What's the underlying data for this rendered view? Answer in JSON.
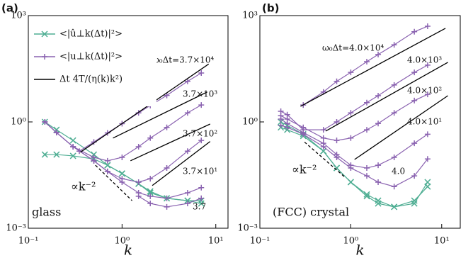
{
  "chart_data": [
    {
      "type": "line",
      "panel_label": "(a)",
      "corner_label": "glass",
      "xlabel": "k",
      "log_scale": true,
      "legend": "upper left",
      "xlim": [
        0.1,
        13.5
      ],
      "ylim": [
        0.001,
        1000
      ],
      "xticks": [
        {
          "value": 0.1,
          "label": "10⁻¹"
        },
        {
          "value": 1,
          "label": "10⁰"
        },
        {
          "value": 10,
          "label": "10¹"
        }
      ],
      "yticks": [
        {
          "value": 0.001,
          "label": "10⁻³"
        },
        {
          "value": 1,
          "label": "10⁰"
        },
        {
          "value": 1000,
          "label": "10³"
        }
      ],
      "series": [
        {
          "name": "<|û⊥k(Δt)|²>",
          "color": "#4fae93",
          "marker": "x",
          "curves": [
            {
              "x": [
                0.15,
                0.2,
                0.3,
                0.5,
                0.7,
                1,
                1.5,
                2,
                3,
                5,
                7
              ],
              "values": [
                1.0,
                0.6,
                0.3,
                0.12,
                0.06,
                0.035,
                0.018,
                0.011,
                0.007,
                0.006,
                0.006
              ]
            },
            {
              "x": [
                0.15,
                0.2,
                0.3,
                0.5,
                0.7,
                1,
                1.5,
                2,
                3,
                5,
                7
              ],
              "values": [
                0.12,
                0.12,
                0.11,
                0.09,
                0.06,
                0.035,
                0.018,
                0.01,
                0.007,
                0.006,
                0.005
              ]
            }
          ]
        },
        {
          "name": "<|u⊥k(Δt)|²>",
          "color": "#8a62b0",
          "marker": "+",
          "curves": [
            {
              "x": [
                0.35,
                0.5,
                0.7,
                1,
                1.5,
                2,
                3,
                5,
                7
              ],
              "values": [
                0.15,
                0.27,
                0.49,
                0.89,
                1.8,
                2.9,
                5.6,
                14,
                24
              ]
            },
            {
              "x": [
                0.15,
                0.2,
                0.3,
                0.5,
                0.7,
                1,
                1.5,
                2,
                3,
                5,
                7
              ],
              "values": [
                1.0,
                0.5,
                0.2,
                0.1,
                0.08,
                0.1,
                0.2,
                0.35,
                0.7,
                1.8,
                3.0
              ]
            },
            {
              "x": [
                0.15,
                0.2,
                0.3,
                0.5,
                0.7,
                1,
                1.5,
                2,
                3,
                5,
                7
              ],
              "values": [
                1.0,
                0.5,
                0.2,
                0.08,
                0.04,
                0.025,
                0.02,
                0.025,
                0.05,
                0.15,
                0.3
              ]
            },
            {
              "x": [
                0.15,
                0.2,
                0.3,
                0.5,
                0.7,
                1,
                1.5,
                2,
                3,
                5,
                7
              ],
              "values": [
                1.0,
                0.5,
                0.2,
                0.08,
                0.04,
                0.02,
                0.01,
                0.008,
                0.007,
                0.01,
                0.014
              ]
            },
            {
              "x": [
                1.5,
                2,
                3,
                5,
                7
              ],
              "values": [
                0.008,
                0.005,
                0.004,
                0.005,
                0.007
              ]
            }
          ]
        },
        {
          "name": "Δt 4T/(η(k)k²)",
          "color": "#000000",
          "marker": "none",
          "curves": [
            {
              "x": [
                0.36,
                8.4
              ],
              "values": [
                0.14,
                43
              ]
            },
            {
              "x": [
                0.8,
                8.1
              ],
              "values": [
                0.35,
                7
              ]
            },
            {
              "x": [
                1.23,
                8.7
              ],
              "values": [
                0.08,
                0.87
              ]
            },
            {
              "x": [
                2.1,
                8.7
              ],
              "values": [
                0.016,
                0.28
              ]
            }
          ]
        }
      ],
      "annotations": [
        "ω₀Δt=3.7×10⁴",
        "3.7×10³",
        "3.7×10²",
        "3.7×10¹",
        "3.7"
      ],
      "slope_line": {
        "text": "∝k⁻²",
        "x": [
          0.52,
          1.28
        ],
        "values": [
          0.06,
          0.006
        ]
      }
    },
    {
      "type": "line",
      "panel_label": "(b)",
      "corner_label": "(FCC) crystal",
      "xlabel": "k",
      "log_scale": true,
      "xlim": [
        0.1,
        16
      ],
      "ylim": [
        0.001,
        1000
      ],
      "xticks": [
        {
          "value": 0.1,
          "label": "10⁻¹"
        },
        {
          "value": 1,
          "label": "10⁰"
        },
        {
          "value": 10,
          "label": "10¹"
        }
      ],
      "yticks": [
        {
          "value": 0.001,
          "label": "10⁻³"
        },
        {
          "value": 1,
          "label": "10⁰"
        },
        {
          "value": 1000,
          "label": "10³"
        }
      ],
      "series": [
        {
          "color": "#4fae93",
          "marker": "x",
          "curves": [
            {
              "x": [
                0.17,
                0.2,
                0.3,
                0.5,
                0.7,
                1,
                1.5,
                2,
                3,
                5,
                7
              ],
              "values": [
                1.0,
                0.8,
                0.45,
                0.15,
                0.05,
                0.02,
                0.008,
                0.005,
                0.004,
                0.005,
                0.02
              ]
            },
            {
              "x": [
                0.17,
                0.2,
                0.3,
                0.5,
                0.7,
                1,
                1.5,
                2,
                3,
                5,
                7
              ],
              "values": [
                0.7,
                0.6,
                0.4,
                0.15,
                0.05,
                0.02,
                0.009,
                0.006,
                0.004,
                0.006,
                0.015
              ]
            }
          ]
        },
        {
          "color": "#8a62b0",
          "marker": "+",
          "curves": [
            {
              "x": [
                0.3,
                0.5,
                0.7,
                1,
                1.5,
                2,
                3,
                5,
                7
              ],
              "values": [
                3,
                7,
                14,
                25,
                50,
                80,
                150,
                350,
                500
              ]
            },
            {
              "x": [
                0.17,
                0.2,
                0.3,
                0.5,
                0.7,
                1,
                1.5,
                2,
                3,
                5,
                7
              ],
              "values": [
                2,
                1.6,
                0.6,
                0.6,
                1,
                1.8,
                3.5,
                5.5,
                11,
                25,
                40
              ]
            },
            {
              "x": [
                0.17,
                0.2,
                0.3,
                0.5,
                0.7,
                1,
                1.5,
                2,
                3,
                5,
                7
              ],
              "values": [
                1.5,
                1.2,
                0.7,
                0.35,
                0.3,
                0.35,
                0.6,
                0.9,
                1.8,
                4,
                6
              ]
            },
            {
              "x": [
                0.17,
                0.2,
                0.3,
                0.5,
                0.7,
                1,
                1.5,
                2,
                3,
                5,
                7
              ],
              "values": [
                1.2,
                0.9,
                0.5,
                0.25,
                0.12,
                0.06,
                0.05,
                0.06,
                0.1,
                0.25,
                0.45
              ]
            },
            {
              "x": [
                0.17,
                0.2,
                0.3,
                0.5,
                0.7,
                1,
                1.5,
                2,
                3,
                5,
                7
              ],
              "values": [
                0.8,
                0.7,
                0.45,
                0.2,
                0.1,
                0.05,
                0.03,
                0.02,
                0.015,
                0.03,
                0.09
              ]
            }
          ]
        },
        {
          "color": "#000000",
          "marker": "none",
          "curves": [
            {
              "x": [
                0.28,
                11
              ],
              "values": [
                2.75,
                437
              ]
            },
            {
              "x": [
                0.53,
                11.7
              ],
              "values": [
                0.55,
                48
              ]
            },
            {
              "x": [
                1.1,
                11.7
              ],
              "values": [
                0.087,
                5.5
              ]
            }
          ]
        }
      ],
      "annotations": [
        "ω₀Δt=4.0×10⁴",
        "4.0×10³",
        "4.0×10²",
        "4.0×10¹",
        "4.0"
      ],
      "slope_line": {
        "text": "∝k⁻²",
        "x": [
          0.31,
          0.87
        ],
        "values": [
          0.27,
          0.027
        ]
      }
    }
  ]
}
